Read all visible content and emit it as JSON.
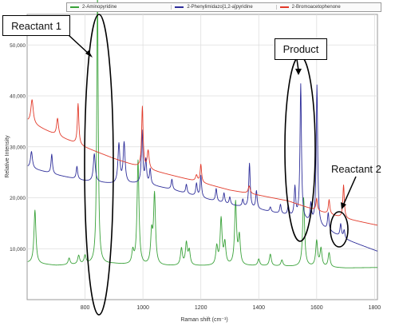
{
  "chart_data": {
    "type": "line",
    "xlabel": "Raman shift (cm⁻¹)",
    "ylabel": "Relative Intensity",
    "xlim": [
      600,
      1810
    ],
    "ylim": [
      0,
      56000
    ],
    "xticks": [
      800,
      1000,
      1200,
      1400,
      1600,
      1800
    ],
    "yticks": [
      10000,
      20000,
      30000,
      40000,
      50000
    ],
    "xtick_labels": [
      "800",
      "1000",
      "1200",
      "1400",
      "1600",
      "1800"
    ],
    "ytick_labels": [
      "10,000",
      "20,000",
      "30,000",
      "40,000",
      "50,000"
    ],
    "grid": true,
    "legend_position": "top",
    "series": [
      {
        "name": "2-Aminopyridine",
        "color": "#3aa23a",
        "baseline": [
          [
            600,
            7200
          ],
          [
            700,
            6700
          ],
          [
            800,
            6900
          ],
          [
            900,
            7000
          ],
          [
            1000,
            6600
          ],
          [
            1200,
            6600
          ],
          [
            1400,
            6600
          ],
          [
            1600,
            6400
          ],
          [
            1700,
            6200
          ],
          [
            1810,
            6300
          ]
        ],
        "peaks": [
          [
            627,
            10500,
            4
          ],
          [
            745,
            1300,
            4
          ],
          [
            778,
            1700,
            4
          ],
          [
            800,
            1600,
            4
          ],
          [
            843,
            53500,
            3
          ],
          [
            965,
            2500,
            4
          ],
          [
            983,
            20500,
            4
          ],
          [
            1030,
            6000,
            4
          ],
          [
            1040,
            13700,
            4
          ],
          [
            1133,
            3300,
            4
          ],
          [
            1150,
            4300,
            4
          ],
          [
            1160,
            2800,
            4
          ],
          [
            1255,
            3600,
            4
          ],
          [
            1270,
            9000,
            4
          ],
          [
            1283,
            4200,
            4
          ],
          [
            1320,
            12300,
            4
          ],
          [
            1333,
            5500,
            4
          ],
          [
            1400,
            1300,
            4
          ],
          [
            1440,
            2300,
            4
          ],
          [
            1480,
            1200,
            4
          ],
          [
            1555,
            13500,
            4
          ],
          [
            1600,
            5000,
            4
          ],
          [
            1615,
            3500,
            4
          ],
          [
            1643,
            2800,
            4
          ]
        ]
      },
      {
        "name": "2-Phenylimidazo[1,2-a]pyridine",
        "color": "#2e2e9a",
        "baseline": [
          [
            600,
            26000
          ],
          [
            700,
            24500
          ],
          [
            800,
            23300
          ],
          [
            900,
            22700
          ],
          [
            1000,
            22800
          ],
          [
            1100,
            21600
          ],
          [
            1200,
            20000
          ],
          [
            1300,
            18600
          ],
          [
            1400,
            17700
          ],
          [
            1500,
            16500
          ],
          [
            1600,
            14600
          ],
          [
            1700,
            11800
          ],
          [
            1810,
            9500
          ]
        ],
        "peaks": [
          [
            615,
            3300,
            4
          ],
          [
            685,
            3800,
            3
          ],
          [
            772,
            2500,
            3
          ],
          [
            832,
            5500,
            4
          ],
          [
            917,
            7700,
            4
          ],
          [
            935,
            7900,
            4
          ],
          [
            997,
            10200,
            3
          ],
          [
            1010,
            4500,
            3
          ],
          [
            1025,
            3000,
            3
          ],
          [
            1100,
            2000,
            3
          ],
          [
            1150,
            1800,
            3
          ],
          [
            1185,
            2500,
            3
          ],
          [
            1200,
            4300,
            3
          ],
          [
            1253,
            2500,
            3
          ],
          [
            1280,
            2000,
            3
          ],
          [
            1300,
            1500,
            3
          ],
          [
            1345,
            1400,
            3
          ],
          [
            1368,
            8700,
            3
          ],
          [
            1392,
            3500,
            3
          ],
          [
            1440,
            900,
            3
          ],
          [
            1475,
            1800,
            3
          ],
          [
            1502,
            1800,
            3
          ],
          [
            1525,
            5800,
            3
          ],
          [
            1545,
            26500,
            3
          ],
          [
            1580,
            3500,
            3
          ],
          [
            1601,
            27400,
            3
          ],
          [
            1640,
            3400,
            3
          ],
          [
            1683,
            2500,
            3
          ],
          [
            1695,
            1600,
            3
          ]
        ]
      },
      {
        "name": "2-Bromoacetophenone",
        "color": "#e23a2a",
        "baseline": [
          [
            600,
            35000
          ],
          [
            700,
            32300
          ],
          [
            800,
            29900
          ],
          [
            900,
            27700
          ],
          [
            1000,
            25800
          ],
          [
            1100,
            24400
          ],
          [
            1200,
            23000
          ],
          [
            1300,
            21500
          ],
          [
            1400,
            20500
          ],
          [
            1500,
            19400
          ],
          [
            1600,
            17500
          ],
          [
            1700,
            15900
          ],
          [
            1810,
            14600
          ]
        ],
        "peaks": [
          [
            617,
            4700,
            5
          ],
          [
            705,
            3400,
            4
          ],
          [
            776,
            8000,
            3
          ],
          [
            998,
            12000,
            3
          ],
          [
            1018,
            3600,
            4
          ],
          [
            1185,
            1200,
            4
          ],
          [
            1200,
            3500,
            3
          ],
          [
            1367,
            1500,
            4
          ],
          [
            1600,
            2400,
            3
          ],
          [
            1643,
            2800,
            3
          ],
          [
            1693,
            6500,
            3
          ]
        ]
      }
    ]
  },
  "annotations": {
    "reactant1": "Reactant 1",
    "product": "Product",
    "reactant2": "Reactant 2"
  }
}
